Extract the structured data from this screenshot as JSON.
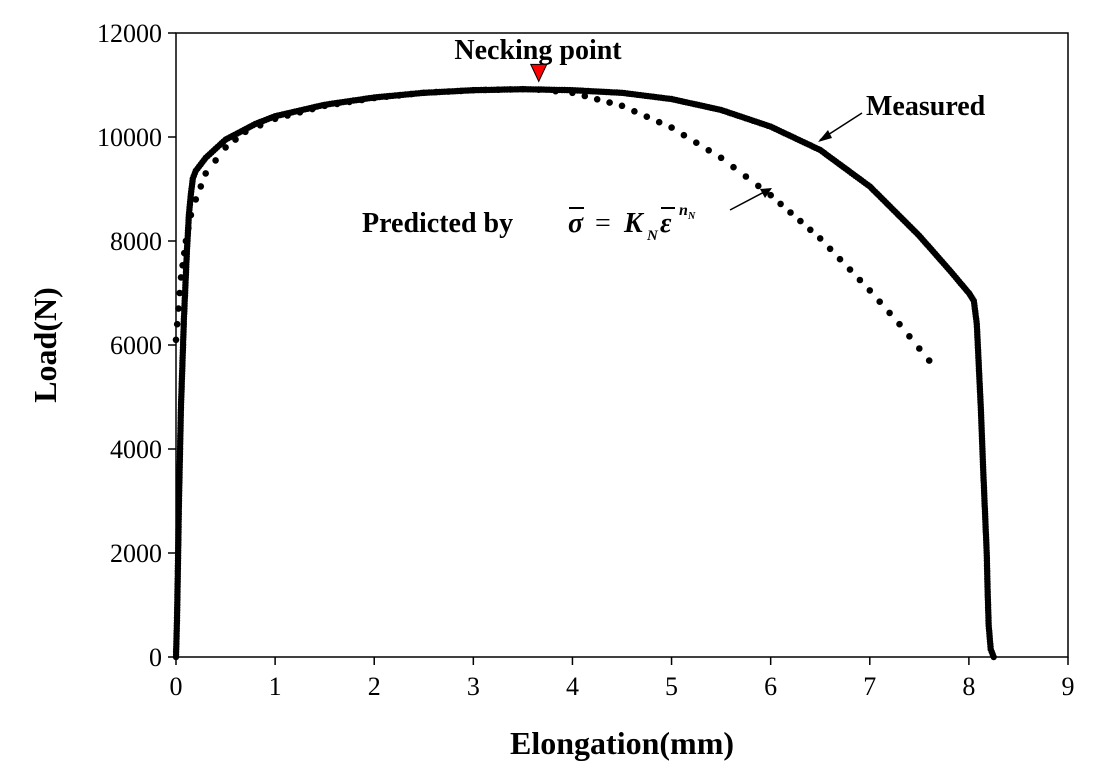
{
  "chart_data": {
    "type": "scatter",
    "xlabel": "Elongation(mm)",
    "ylabel": "Load(N)",
    "xlim": [
      0,
      9
    ],
    "ylim": [
      0,
      12000
    ],
    "x_ticks": [
      "0",
      "1",
      "2",
      "3",
      "4",
      "5",
      "6",
      "7",
      "8",
      "9"
    ],
    "y_ticks": [
      "0",
      "2000",
      "4000",
      "6000",
      "8000",
      "10000",
      "12000"
    ],
    "grid": false,
    "legend": "none",
    "annotations": {
      "necking": {
        "label": "Necking point",
        "x": 3.66,
        "y": 11050,
        "marker_color": "#ff0000"
      },
      "measured": {
        "label": "Measured"
      },
      "predicted": {
        "label": "Predicted by",
        "formula_equals": "=",
        "formula_K": "K",
        "formula_K_sub": "N",
        "formula_n": "n",
        "formula_n_sub": "N"
      }
    },
    "series": [
      {
        "name": "Measured",
        "style": "dense-dots",
        "x": [
          0.0,
          0.01,
          0.02,
          0.03,
          0.05,
          0.08,
          0.11,
          0.13,
          0.15,
          0.17,
          0.2,
          0.3,
          0.5,
          0.8,
          1.0,
          1.5,
          2.0,
          2.5,
          3.0,
          3.5,
          4.0,
          4.5,
          5.0,
          5.5,
          6.0,
          6.5,
          7.0,
          7.5,
          7.8,
          8.0,
          8.05,
          8.08,
          8.1,
          8.12,
          8.14,
          8.16,
          8.18,
          8.19,
          8.2,
          8.22,
          8.25
        ],
        "y": [
          0,
          700,
          1800,
          3000,
          4800,
          6500,
          7800,
          8500,
          8900,
          9200,
          9350,
          9600,
          9950,
          10250,
          10400,
          10620,
          10760,
          10850,
          10900,
          10920,
          10900,
          10850,
          10730,
          10520,
          10200,
          9750,
          9050,
          8100,
          7450,
          7000,
          6850,
          6400,
          5600,
          4800,
          3800,
          2900,
          2000,
          1200,
          600,
          150,
          0
        ]
      },
      {
        "name": "Predicted",
        "style": "sparse-dots",
        "x": [
          0.0,
          0.05,
          0.1,
          0.15,
          0.2,
          0.3,
          0.5,
          0.7,
          1.0,
          1.5,
          2.0,
          2.5,
          3.0,
          3.5,
          3.66,
          4.0,
          4.5,
          5.0,
          5.5,
          6.0,
          6.5,
          7.0,
          7.3,
          7.6
        ],
        "y": [
          6100,
          7300,
          8000,
          8500,
          8800,
          9300,
          9800,
          10100,
          10350,
          10600,
          10750,
          10850,
          10900,
          10920,
          10910,
          10850,
          10600,
          10180,
          9600,
          8880,
          8050,
          7050,
          6400,
          5700
        ]
      }
    ]
  }
}
